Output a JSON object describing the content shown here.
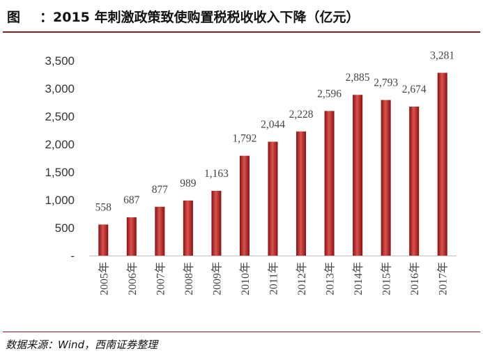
{
  "header": {
    "figure_label": "图",
    "title": "：2015 年刺激政策致使购置税税收收入下降（亿元）"
  },
  "footer": {
    "source": "数据来源：Wind，西南证券整理"
  },
  "colors": {
    "bar_dark": "#8b0f0f",
    "bar_mid": "#c8322c",
    "bar_light": "#d9534f",
    "rule": "#8b1a1a"
  },
  "chart_data": {
    "type": "bar",
    "categories": [
      "2005年",
      "2006年",
      "2007年",
      "2008年",
      "2009年",
      "2010年",
      "2011年",
      "2012年",
      "2013年",
      "2014年",
      "2015年",
      "2016年",
      "2017年"
    ],
    "values": [
      558,
      687,
      877,
      989,
      1163,
      1792,
      2044,
      2228,
      2596,
      2885,
      2793,
      2674,
      3281
    ],
    "data_labels": [
      "558",
      "687",
      "877",
      "989",
      "1,163",
      "1,792",
      "2,044",
      "2,228",
      "2,596",
      "2,885",
      "2,793",
      "2,674",
      "3,281"
    ],
    "y_ticks": [
      0,
      500,
      1000,
      1500,
      2000,
      2500,
      3000,
      3500
    ],
    "y_tick_labels": [
      "-",
      "500",
      "1,000",
      "1,500",
      "2,000",
      "2,500",
      "3,000",
      "3,500"
    ],
    "ylim": [
      0,
      3500
    ],
    "xlabel": "",
    "ylabel": "",
    "grid": false,
    "legend": "none"
  }
}
